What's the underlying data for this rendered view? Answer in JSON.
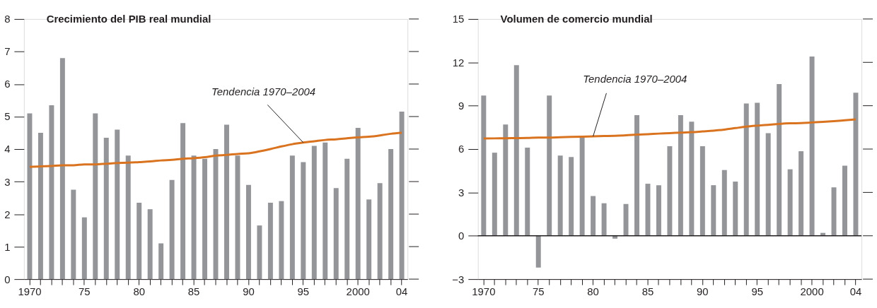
{
  "chart_data": [
    {
      "type": "bar",
      "title": "Crecimiento del PIB real mundial",
      "categories": [
        "1970",
        null,
        null,
        null,
        null,
        "75",
        null,
        null,
        null,
        null,
        "80",
        null,
        null,
        null,
        null,
        "85",
        null,
        null,
        null,
        null,
        "90",
        null,
        null,
        null,
        null,
        "95",
        null,
        null,
        null,
        null,
        "2000",
        null,
        null,
        null,
        "04"
      ],
      "series": [
        {
          "type": "bar",
          "color": "#939598",
          "values": [
            5.1,
            4.5,
            5.35,
            6.8,
            2.75,
            1.9,
            5.1,
            4.35,
            4.6,
            3.8,
            2.35,
            2.15,
            1.1,
            3.05,
            4.8,
            3.8,
            3.7,
            4.0,
            4.75,
            3.8,
            2.9,
            1.65,
            2.35,
            2.4,
            3.8,
            3.6,
            4.1,
            4.2,
            2.8,
            3.7,
            4.65,
            2.45,
            2.95,
            4.0,
            5.15
          ]
        },
        {
          "type": "line",
          "color": "#d9731f",
          "values": [
            3.45,
            3.47,
            3.48,
            3.5,
            3.5,
            3.53,
            3.53,
            3.55,
            3.57,
            3.58,
            3.6,
            3.62,
            3.65,
            3.67,
            3.7,
            3.72,
            3.75,
            3.8,
            3.82,
            3.85,
            3.87,
            3.93,
            4.0,
            4.08,
            4.15,
            4.2,
            4.24,
            4.28,
            4.3,
            4.33,
            4.36,
            4.38,
            4.42,
            4.47,
            4.5
          ]
        }
      ],
      "ylim": [
        0,
        8
      ],
      "yticks": [
        0,
        1,
        2,
        3,
        4,
        5,
        6,
        7,
        8
      ],
      "annotations": [
        {
          "text": "Tendencia 1970–2004",
          "x": "95",
          "y": 4.2
        }
      ]
    },
    {
      "type": "bar",
      "title": "Volumen de comercio mundial",
      "categories": [
        "1970",
        null,
        null,
        null,
        null,
        "75",
        null,
        null,
        null,
        null,
        "80",
        null,
        null,
        null,
        null,
        "85",
        null,
        null,
        null,
        null,
        "90",
        null,
        null,
        null,
        null,
        "95",
        null,
        null,
        null,
        null,
        "2000",
        null,
        null,
        null,
        "04"
      ],
      "series": [
        {
          "type": "bar",
          "color": "#939598",
          "values": [
            9.7,
            5.75,
            7.7,
            11.8,
            6.1,
            -2.2,
            9.7,
            5.55,
            5.45,
            6.9,
            2.75,
            2.25,
            -0.2,
            2.2,
            8.35,
            3.6,
            3.5,
            6.2,
            8.35,
            7.9,
            6.2,
            3.5,
            4.55,
            3.75,
            9.15,
            9.2,
            7.1,
            10.5,
            4.6,
            5.85,
            12.4,
            0.2,
            3.35,
            4.85,
            9.9
          ]
        },
        {
          "type": "line",
          "color": "#d9731f",
          "values": [
            6.73,
            6.74,
            6.75,
            6.76,
            6.77,
            6.8,
            6.8,
            6.82,
            6.84,
            6.86,
            6.88,
            6.9,
            6.92,
            6.95,
            7.0,
            7.03,
            7.07,
            7.1,
            7.14,
            7.17,
            7.22,
            7.27,
            7.35,
            7.45,
            7.55,
            7.62,
            7.68,
            7.74,
            7.78,
            7.8,
            7.84,
            7.88,
            7.93,
            7.99,
            8.05
          ]
        }
      ],
      "ylim": [
        -3,
        15
      ],
      "yticks": [
        -3,
        0,
        3,
        6,
        9,
        12,
        15
      ],
      "ref_lines": [
        {
          "axis": "y",
          "value": 0,
          "color": "#231f20"
        }
      ],
      "annotations": [
        {
          "text": "Tendencia 1970–2004",
          "x": "80",
          "y": 6.88
        }
      ]
    }
  ]
}
